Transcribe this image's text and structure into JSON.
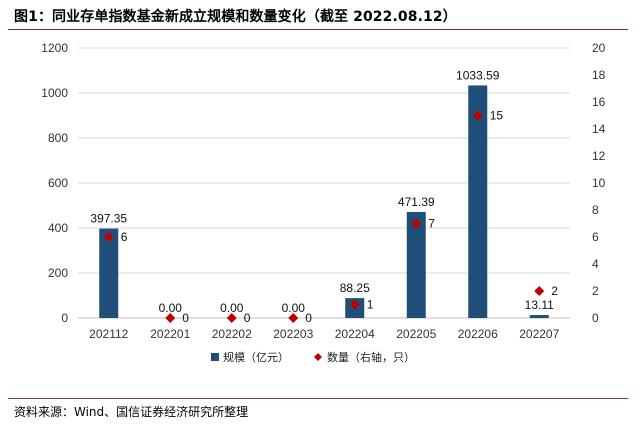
{
  "figure": {
    "title": "图1：同业存单指数基金新成立规模和数量变化（截至 2022.08.12）",
    "source": "资料来源：Wind、国信证券经济研究所整理"
  },
  "chart_data": {
    "type": "bar",
    "categories": [
      "202112",
      "202201",
      "202202",
      "202203",
      "202204",
      "202205",
      "202206",
      "202207"
    ],
    "series": [
      {
        "name": "规模（亿元）",
        "type": "bar",
        "axis": "left",
        "color": "#1f4e79",
        "values": [
          397.35,
          0.0,
          0.0,
          0.0,
          88.25,
          471.39,
          1033.59,
          13.11
        ],
        "labels": [
          "397.35",
          "0.00",
          "0.00",
          "0.00",
          "88.25",
          "471.39",
          "1033.59",
          "13.11"
        ]
      },
      {
        "name": "数量（右轴，只）",
        "type": "scatter",
        "marker": "diamond",
        "axis": "right",
        "color": "#c00000",
        "values": [
          6,
          0,
          0,
          0,
          1,
          7,
          15,
          2
        ],
        "labels": [
          "6",
          "0",
          "0",
          "0",
          "1",
          "7",
          "15",
          "2"
        ]
      }
    ],
    "left_axis": {
      "ylim": [
        0,
        1200
      ],
      "ticks": [
        0,
        200,
        400,
        600,
        800,
        1000,
        1200
      ]
    },
    "right_axis": {
      "ylim": [
        0,
        20
      ],
      "ticks": [
        0,
        2,
        4,
        6,
        8,
        10,
        12,
        14,
        16,
        18,
        20
      ]
    },
    "grid": true,
    "legend_position": "bottom"
  }
}
